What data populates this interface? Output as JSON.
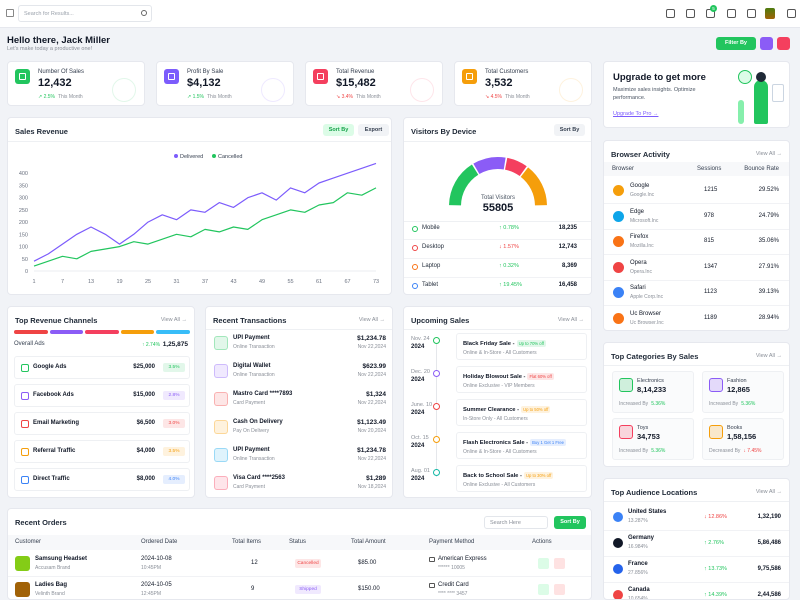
{
  "top_bar": {
    "search_placeholder": "Search for Results...",
    "cart_badge": "5"
  },
  "greeting": {
    "title": "Hello there, Jack Miller",
    "subtitle": "Let's make today a productive one!",
    "filter_button": "Filter By"
  },
  "stats": [
    {
      "label": "Number Of Sales",
      "value": "12,432",
      "change": "↗ 2.5%",
      "period": "This Month",
      "trend_color": "#22c55e",
      "icon_color": "#22c55e"
    },
    {
      "label": "Profit By Sale",
      "value": "$4,132",
      "change": "↗ 1.5%",
      "period": "This Month",
      "trend_color": "#22c55e",
      "icon_color": "#7c5cfc"
    },
    {
      "label": "Total Revenue",
      "value": "$15,482",
      "change": "↘ 3.4%",
      "period": "This Month",
      "trend_color": "#ef4444",
      "icon_color": "#f43f5e"
    },
    {
      "label": "Total Customers",
      "value": "3,532",
      "change": "↘ 4.5%",
      "period": "This Month",
      "trend_color": "#ef4444",
      "icon_color": "#f59e0b"
    }
  ],
  "upgrade": {
    "title": "Upgrade to get more",
    "text": "Maximize sales insights. Optimize performance.",
    "link": "Upgrade To Pro →"
  },
  "sales_revenue": {
    "title": "Sales Revenue",
    "sort_button": "Sort By",
    "export_button": "Export",
    "chart_data": {
      "type": "line",
      "x": [
        1,
        4,
        7,
        10,
        13,
        16,
        19,
        22,
        25,
        28,
        31,
        34,
        37,
        40,
        43,
        46,
        49,
        52,
        55,
        58,
        61,
        64,
        67,
        70,
        73
      ],
      "series": [
        {
          "name": "Delivered",
          "color": "#7c5cfc",
          "values": [
            40,
            70,
            110,
            150,
            180,
            150,
            110,
            150,
            200,
            230,
            210,
            250,
            240,
            280,
            260,
            300,
            320,
            290,
            340,
            320,
            360,
            380,
            400,
            420,
            440
          ]
        },
        {
          "name": "Cancelled",
          "color": "#22c55e",
          "values": [
            20,
            40,
            60,
            50,
            80,
            90,
            100,
            120,
            110,
            130,
            150,
            140,
            170,
            160,
            180,
            170,
            210,
            230,
            250,
            240,
            270,
            280,
            320,
            310,
            340
          ]
        }
      ],
      "xlim": [
        1,
        73
      ],
      "xticks": [
        1,
        7,
        13,
        19,
        25,
        31,
        37,
        43,
        49,
        55,
        61,
        67,
        73
      ],
      "ylim": [
        0,
        450
      ],
      "yticks": [
        0,
        50,
        100,
        150,
        200,
        250,
        300,
        350,
        400
      ]
    }
  },
  "visitors": {
    "title": "Visitors By Device",
    "sort_button": "Sort By",
    "center_label": "Total Visitors",
    "total": 55805,
    "chart_data": {
      "type": "gauge",
      "categories": [
        "Mobile",
        "Desktop",
        "Laptop",
        "Tablet"
      ],
      "values": [
        18235,
        12743,
        8369,
        16458
      ],
      "value_labels": [
        "18,235",
        "12,743",
        "8,369",
        "16,458"
      ],
      "colors": [
        "#22c55e",
        "#8b5cf6",
        "#f43f5e",
        "#f59e0b"
      ],
      "dot_colors": [
        "#22c55e",
        "#ef4444",
        "#f97316",
        "#3b82f6"
      ]
    },
    "changes": [
      "↑ 0.78%",
      "↓ 1.57%",
      "↑ 0.32%",
      "↑ 19.45%"
    ],
    "change_colors": [
      "#22c55e",
      "#ef4444",
      "#22c55e",
      "#22c55e"
    ]
  },
  "browser_activity": {
    "title": "Browser Activity",
    "view_all": "View All →",
    "columns": [
      "Browser",
      "Sessions",
      "Bounce Rate"
    ],
    "rows": [
      {
        "name": "Google",
        "company": "Google.Inc",
        "sessions": 1215,
        "bounce_rate": "29.52%",
        "color": "#f59e0b"
      },
      {
        "name": "Edge",
        "company": "Microsoft.Inc",
        "sessions": 978,
        "bounce_rate": "24.79%",
        "color": "#0ea5e9"
      },
      {
        "name": "Firefox",
        "company": "Mozilla.Inc",
        "sessions": 815,
        "bounce_rate": "35.06%",
        "color": "#f97316"
      },
      {
        "name": "Opera",
        "company": "Opera.Inc",
        "sessions": 1347,
        "bounce_rate": "27.91%",
        "color": "#ef4444"
      },
      {
        "name": "Safari",
        "company": "Apple Corp.Inc",
        "sessions": 1123,
        "bounce_rate": "39.13%",
        "color": "#3b82f6"
      },
      {
        "name": "Uc Browser",
        "company": "Uc Browser.Inc",
        "sessions": 1189,
        "bounce_rate": "28.94%",
        "color": "#f97316"
      }
    ]
  },
  "revenue_channels": {
    "title": "Top Revenue Channels",
    "view_all": "View All →",
    "overall_label": "Overall Ads",
    "overall_change": "↑ 2.74%",
    "overall_value": "1,25,875",
    "channels": [
      {
        "name": "Google Ads",
        "amount": "$25,000",
        "badge": "3.5%",
        "color": "#22c55e",
        "bar_color": "#ef4444"
      },
      {
        "name": "Facebook Ads",
        "amount": "$15,000",
        "badge": "2.8%",
        "color": "#8b5cf6",
        "bar_color": "#8b5cf6"
      },
      {
        "name": "Email Marketing",
        "amount": "$6,500",
        "badge": "3.0%",
        "color": "#ef4444",
        "bar_color": "#f43f5e"
      },
      {
        "name": "Referral Traffic",
        "amount": "$4,000",
        "badge": "3.5%",
        "color": "#f59e0b",
        "bar_color": "#f59e0b"
      },
      {
        "name": "Direct Traffic",
        "amount": "$8,000",
        "badge": "4.0%",
        "color": "#3b82f6",
        "bar_color": "#38bdf8"
      }
    ]
  },
  "transactions": {
    "title": "Recent Transactions",
    "view_all": "View All →",
    "items": [
      {
        "name": "UPI Payment",
        "type": "Online Transaction",
        "amount": "$1,234.78",
        "date": "Nov 22,2024",
        "color": "#22c55e"
      },
      {
        "name": "Digital Wallet",
        "type": "Online Transaction",
        "amount": "$623.99",
        "date": "Nov 22,2024",
        "color": "#8b5cf6"
      },
      {
        "name": "Mastro Card ****7893",
        "type": "Card Payment",
        "amount": "$1,324",
        "date": "Nov 22,2024",
        "color": "#ef4444"
      },
      {
        "name": "Cash On Delivery",
        "type": "Pay On Delivery",
        "amount": "$1,123.49",
        "date": "Nov 20,2024",
        "color": "#f59e0b"
      },
      {
        "name": "UPI Payment",
        "type": "Online Transaction",
        "amount": "$1,234.78",
        "date": "Nov 22,2024",
        "color": "#0ea5e9"
      },
      {
        "name": "Visa Card ****2563",
        "type": "Card Payment",
        "amount": "$1,289",
        "date": "Nov 18,2024",
        "color": "#f43f5e"
      }
    ]
  },
  "upcoming_sales": {
    "title": "Upcoming Sales",
    "view_all": "View All →",
    "items": [
      {
        "day": "Nov. 24",
        "year": "2024",
        "title": "Black Friday Sale -",
        "badge": "Up to 70% off",
        "subtitle": "Online & In-Store - All Customers",
        "color": "#22c55e",
        "badge_color": "#22c55e"
      },
      {
        "day": "Dec. 20",
        "year": "2024",
        "title": "Holiday Blowout Sale -",
        "badge": "Flat 60% off",
        "subtitle": "Online Exclusive - VIP Members",
        "color": "#8b5cf6",
        "badge_color": "#ef4444"
      },
      {
        "day": "June. 10",
        "year": "2024",
        "title": "Summer Clearance -",
        "badge": "Up to 50% off",
        "subtitle": "In-Store Only - All Customers",
        "color": "#ef4444",
        "badge_color": "#f59e0b"
      },
      {
        "day": "Oct. 15",
        "year": "2024",
        "title": "Flash Electronics Sale -",
        "badge": "Buy 1 Get 1 Free",
        "subtitle": "Online & In-Store - All Customers",
        "color": "#f59e0b",
        "badge_color": "#3b82f6"
      },
      {
        "day": "Aug. 01",
        "year": "2024",
        "title": "Back to School Sale -",
        "badge": "Up to 30% off",
        "subtitle": "Online Exclusive - All Customers",
        "color": "#14b8a6",
        "badge_color": "#f59e0b"
      }
    ]
  },
  "top_categories": {
    "title": "Top Categories By Sales",
    "view_all": "View All →",
    "items": [
      {
        "name": "Electronics",
        "value": "8,14,233",
        "change_label": "Increased By",
        "change": "5.36%",
        "color": "#22c55e",
        "change_color": "#22c55e"
      },
      {
        "name": "Fashion",
        "value": "12,865",
        "change_label": "Increased By",
        "change": "5.36%",
        "color": "#8b5cf6",
        "change_color": "#22c55e"
      },
      {
        "name": "Toys",
        "value": "34,753",
        "change_label": "Increased By",
        "change": "5.36%",
        "color": "#f43f5e",
        "change_color": "#22c55e"
      },
      {
        "name": "Books",
        "value": "1,58,156",
        "change_label": "Decreased By",
        "change": "↓ 7.45%",
        "color": "#f59e0b",
        "change_color": "#ef4444"
      }
    ]
  },
  "audience_locations": {
    "title": "Top Audience Locations",
    "view_all": "View All →",
    "items": [
      {
        "country": "United States",
        "share": "13.287%",
        "change": "↓ 12.86%",
        "value": "1,32,190",
        "color": "#3b82f6",
        "change_color": "#ef4444"
      },
      {
        "country": "Germany",
        "share": "16.984%",
        "change": "↑ 2.76%",
        "value": "5,86,486",
        "color": "#111827",
        "change_color": "#22c55e"
      },
      {
        "country": "France",
        "share": "27.856%",
        "change": "↑ 13.73%",
        "value": "9,75,586",
        "color": "#2563eb",
        "change_color": "#22c55e"
      },
      {
        "country": "Canada",
        "share": "10.654%",
        "change": "↑ 14.39%",
        "value": "2,44,586",
        "color": "#ef4444",
        "change_color": "#22c55e"
      }
    ]
  },
  "recent_orders": {
    "title": "Recent Orders",
    "search_placeholder": "Search Here",
    "sort_button": "Sort By",
    "columns": [
      "Customer",
      "Ordered Date",
      "Total Items",
      "Status",
      "Total Amount",
      "Payment Method",
      "Actions"
    ],
    "rows": [
      {
        "product": "Samsung Headset",
        "brand": "Accusam Brand",
        "date": "2024-10-08",
        "time": "10:45PM",
        "items": "12",
        "status": "Cancelled",
        "status_color": "#ef4444",
        "amount": "$85.00",
        "payment": "American Express",
        "card": "****** 10005",
        "color": "#84cc16"
      },
      {
        "product": "Ladies Bag",
        "brand": "Velinth Brand",
        "date": "2024-10-05",
        "time": "12:45PM",
        "items": "9",
        "status": "Shipped",
        "status_color": "#8b5cf6",
        "amount": "$150.00",
        "payment": "Credit Card",
        "card": "**** **** 3457",
        "color": "#a16207"
      }
    ]
  }
}
